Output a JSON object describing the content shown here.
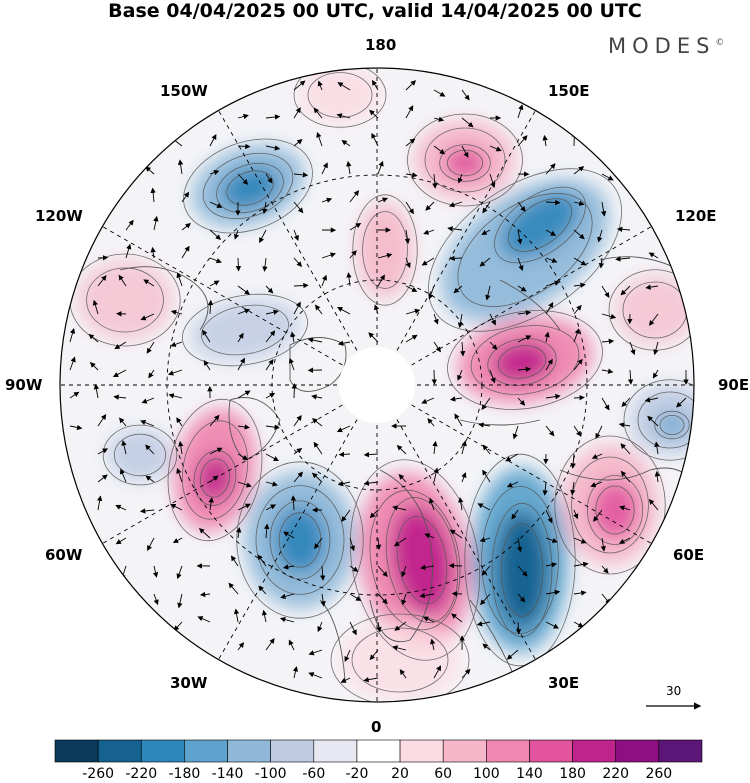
{
  "title": "Base 04/04/2025 00 UTC, valid 14/04/2025 00 UTC",
  "brand": "MODES",
  "brand_mark": "©",
  "longitude_labels": {
    "top": "180",
    "bottom": "0",
    "left": "90W",
    "right": "90E",
    "upper_left": "150W",
    "upper_right": "150E",
    "mid_upper_left": "120W",
    "mid_upper_right": "120E",
    "mid_lower_left": "60W",
    "mid_lower_right": "60E",
    "lower_left": "30W",
    "lower_right": "30E"
  },
  "reference_vector_label": "30",
  "colorbar": {
    "ticks": [
      "-260",
      "-220",
      "-180",
      "-140",
      "-100",
      "-60",
      "-20",
      "20",
      "60",
      "100",
      "140",
      "180",
      "220",
      "260"
    ],
    "colors": [
      "#0b3a5c",
      "#15618f",
      "#2f86bb",
      "#5ea3cd",
      "#8fb8d9",
      "#bfcbe3",
      "#e7e8f2",
      "#ffffff",
      "#fbdce3",
      "#f5b7c9",
      "#ef88b0",
      "#e2559e",
      "#c0238c",
      "#8e0f7f",
      "#5c1677"
    ]
  },
  "map_features": {
    "projection": "north-polar-stereographic",
    "contour_colors_by_sign": {
      "negative": "blue",
      "positive": "pink-magenta"
    }
  }
}
